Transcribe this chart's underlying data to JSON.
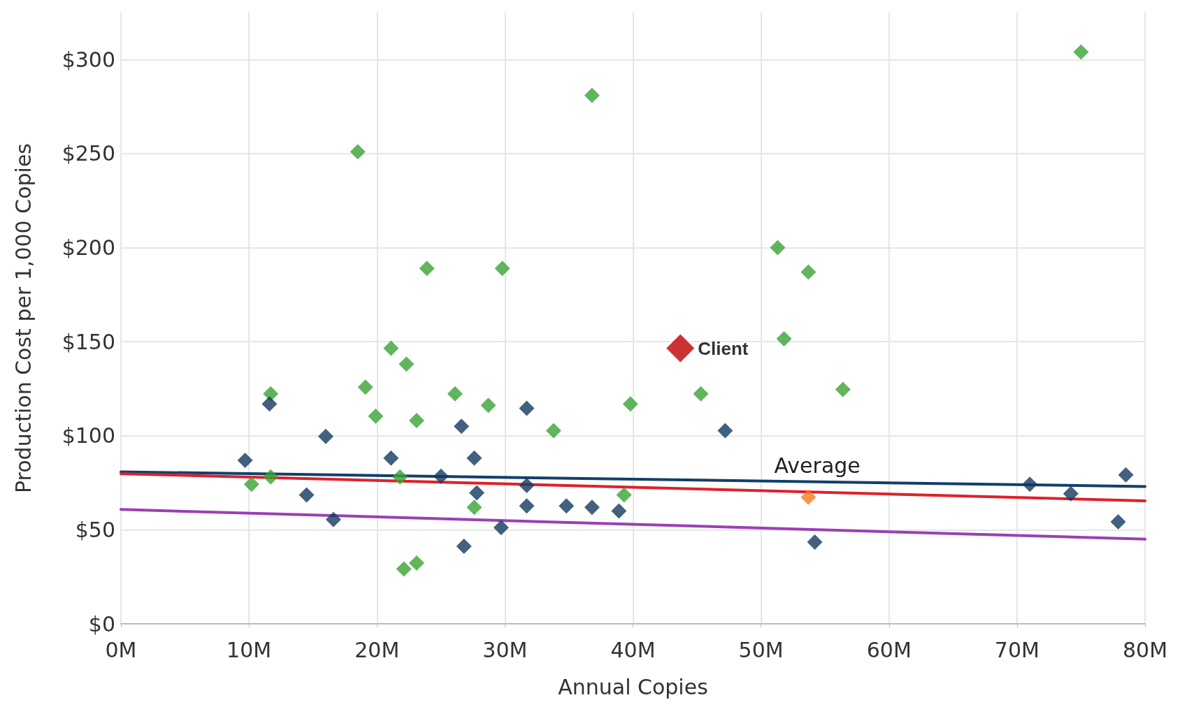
{
  "chart_data": {
    "type": "scatter",
    "xlabel": "Annual Copies",
    "ylabel": "Production Cost per 1,000 Copies",
    "xlim": [
      0,
      80
    ],
    "ylim": [
      0,
      325
    ],
    "xticks": [
      {
        "value": 0,
        "label": "0M"
      },
      {
        "value": 10,
        "label": "10M"
      },
      {
        "value": 20,
        "label": "20M"
      },
      {
        "value": 30,
        "label": "30M"
      },
      {
        "value": 40,
        "label": "40M"
      },
      {
        "value": 50,
        "label": "50M"
      },
      {
        "value": 60,
        "label": "60M"
      },
      {
        "value": 70,
        "label": "70M"
      },
      {
        "value": 80,
        "label": "80M"
      }
    ],
    "yticks": [
      {
        "value": 0,
        "label": "$0"
      },
      {
        "value": 50,
        "label": "$50"
      },
      {
        "value": 100,
        "label": "$100"
      },
      {
        "value": 150,
        "label": "$150"
      },
      {
        "value": 200,
        "label": "$200"
      },
      {
        "value": 250,
        "label": "$250"
      },
      {
        "value": 300,
        "label": "$300"
      }
    ],
    "grid": true,
    "legend": false,
    "marker": "diamond",
    "line_style": "solid",
    "series": [
      {
        "type": "line",
        "name": "Average",
        "marker": "none",
        "color": "#123f6b",
        "x": [
          0,
          80
        ],
        "values": [
          80.8,
          73
        ]
      },
      {
        "type": "line",
        "marker": "none",
        "color": "#e0202a",
        "x": [
          0,
          80
        ],
        "values": [
          79.8,
          65.4
        ]
      },
      {
        "type": "line",
        "marker": "none",
        "color": "#9b3fb5",
        "x": [
          0,
          80
        ],
        "values": [
          60.8,
          45
        ]
      },
      {
        "color": "#3aa335",
        "x": [
          75.0,
          36.8,
          18.5,
          23.9,
          29.8,
          51.3,
          53.7,
          51.8,
          56.4,
          45.3,
          39.8,
          21.1,
          22.3,
          19.1,
          19.9,
          23.1,
          26.1,
          28.7,
          33.8,
          11.7,
          10.2,
          11.7,
          21.8,
          27.6,
          39.3,
          22.1,
          23.1
        ],
        "values": [
          304,
          281,
          251,
          189,
          189,
          200,
          187,
          151.5,
          124.6,
          122.3,
          116.9,
          146.5,
          138.1,
          125.8,
          110.4,
          108.1,
          122.3,
          116.2,
          102.7,
          122.3,
          74.2,
          78.1,
          78.1,
          61.9,
          68.5,
          29.2,
          32.3
        ]
      },
      {
        "color": "#123a5e",
        "x": [
          11.6,
          9.7,
          16.0,
          14.5,
          16.6,
          21.1,
          25.0,
          26.6,
          27.6,
          27.8,
          26.8,
          29.7,
          31.7,
          31.7,
          31.7,
          34.8,
          36.8,
          38.9,
          47.2,
          54.2,
          71.0,
          74.2,
          78.5,
          77.9
        ],
        "values": [
          116.9,
          86.9,
          99.6,
          68.5,
          55.4,
          88.1,
          78.5,
          105,
          88.1,
          69.6,
          41.2,
          51.2,
          114.6,
          73.5,
          62.7,
          62.7,
          61.9,
          60,
          102.7,
          43.5,
          74.2,
          69.2,
          79.2,
          54.2
        ]
      },
      {
        "color": "#f47b20",
        "x": [
          53.7
        ],
        "values": [
          67.3
        ]
      },
      {
        "name": "Client",
        "color": "#c00000",
        "x": [
          43.7
        ],
        "values": [
          146.5
        ]
      }
    ]
  }
}
